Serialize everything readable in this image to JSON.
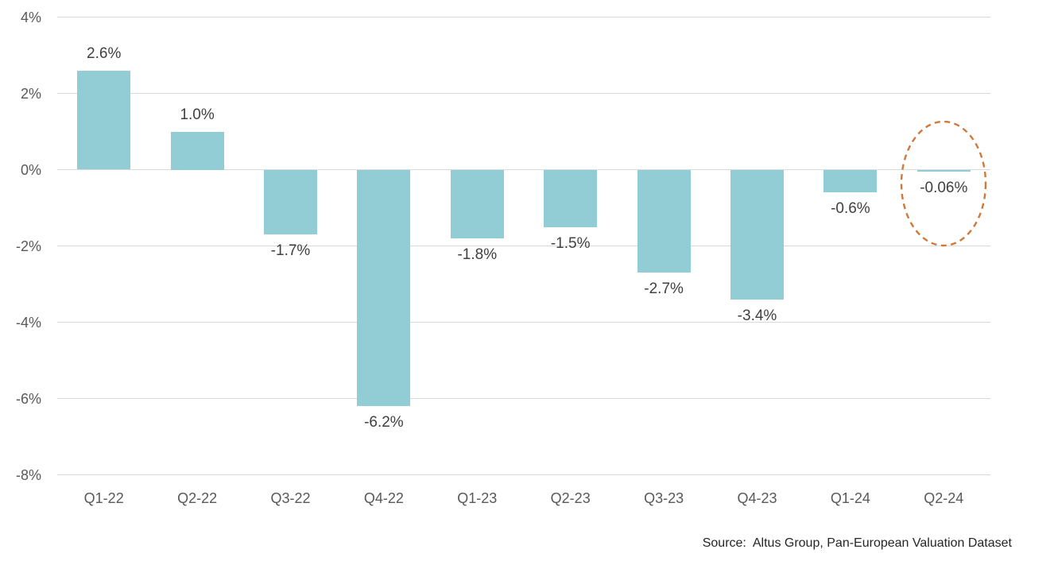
{
  "chart_data": {
    "type": "bar",
    "title": "",
    "xlabel": "",
    "ylabel": "",
    "categories": [
      "Q1-22",
      "Q2-22",
      "Q3-22",
      "Q4-22",
      "Q1-23",
      "Q2-23",
      "Q3-23",
      "Q4-23",
      "Q1-24",
      "Q2-24"
    ],
    "values": [
      2.6,
      1.0,
      -1.7,
      -6.2,
      -1.8,
      -1.5,
      -2.7,
      -3.4,
      -0.6,
      -0.06
    ],
    "value_labels": [
      "2.6%",
      "1.0%",
      "-1.7%",
      "-6.2%",
      "-1.8%",
      "-1.5%",
      "-2.7%",
      "-3.4%",
      "-0.6%",
      "-0.06%"
    ],
    "ylim": [
      -8,
      4
    ],
    "y_ticks": [
      {
        "value": 4,
        "label": "4%"
      },
      {
        "value": 2,
        "label": "2%"
      },
      {
        "value": 0,
        "label": "0%"
      },
      {
        "value": -2,
        "label": "-2%"
      },
      {
        "value": -4,
        "label": "-4%"
      },
      {
        "value": -6,
        "label": "-6%"
      },
      {
        "value": -8,
        "label": "-8%"
      }
    ],
    "grid": "horizontal",
    "legend": "none",
    "bar_color": "#92cdd5",
    "gridline_color": "#d9d9d9",
    "axis_label_color": "#595959",
    "bar_label_color": "#404040",
    "annotation": {
      "shape": "dashed-ellipse",
      "around_category": "Q2-24",
      "color": "#d0793b"
    }
  },
  "source": {
    "text": "Source:  Altus Group, Pan-European Valuation Dataset"
  }
}
